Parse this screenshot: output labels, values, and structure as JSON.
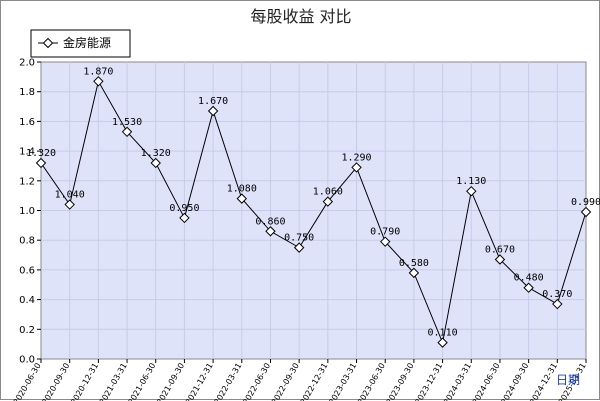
{
  "colors": {
    "plot_bg": "#dfe3fa",
    "grid": "#c6cbe8",
    "line": "#000000",
    "marker_fill": "#ffffff",
    "xlabel": "#1a3fd0"
  },
  "chart_data": {
    "type": "line",
    "title": "每股收益  对比",
    "xlabel": "日期",
    "ylabel": "",
    "ylim": [
      0,
      2.0
    ],
    "yticks": [
      "0.0",
      "0.2",
      "0.4",
      "0.6",
      "0.8",
      "1.0",
      "1.2",
      "1.4",
      "1.6",
      "1.8",
      "2.0"
    ],
    "grid": true,
    "legend_position": "top-left",
    "x": [
      "2020-06-30",
      "2020-09-30",
      "2020-12-31",
      "2021-03-31",
      "2021-06-30",
      "2021-09-30",
      "2021-12-31",
      "2022-03-31",
      "2022-06-30",
      "2022-09-30",
      "2022-12-31",
      "2023-03-31",
      "2023-06-30",
      "2023-09-30",
      "2023-12-31",
      "2024-03-31",
      "2024-06-30",
      "2024-09-30",
      "2024-12-31",
      "2025-03-31"
    ],
    "series": [
      {
        "name": "金房能源",
        "values": [
          1.32,
          1.04,
          1.87,
          1.53,
          1.32,
          0.95,
          1.67,
          1.08,
          0.86,
          0.75,
          1.06,
          1.29,
          0.79,
          0.58,
          0.11,
          1.13,
          0.67,
          0.48,
          0.37,
          0.99
        ],
        "labels": [
          "1.320",
          "1.040",
          "1.870",
          "1.530",
          "1.320",
          "0.950",
          "1.670",
          "1.080",
          "0.860",
          "0.750",
          "1.060",
          "1.290",
          "0.790",
          "0.580",
          "0.110",
          "1.130",
          "0.670",
          "0.480",
          "0.370",
          "0.990"
        ]
      }
    ]
  }
}
